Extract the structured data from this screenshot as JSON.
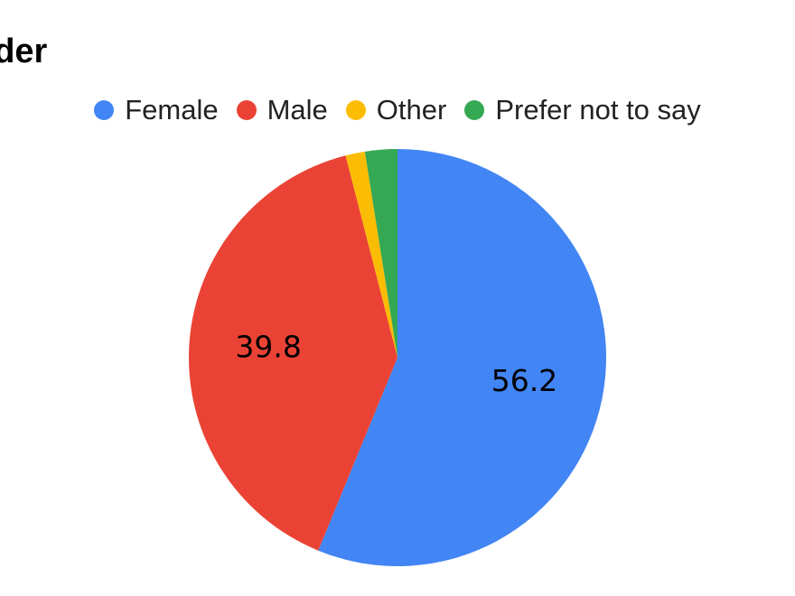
{
  "chart_data": {
    "type": "pie",
    "title": "nder",
    "legend_position": "top",
    "categories": [
      "Female",
      "Male",
      "Other",
      "Prefer not to say"
    ],
    "values": [
      56.2,
      39.8,
      1.5,
      2.5
    ],
    "colors": [
      "#4285f4",
      "#ea4335",
      "#fbbc04",
      "#34a853"
    ],
    "data_labels": [
      "56.2",
      "39.8",
      "",
      ""
    ]
  }
}
